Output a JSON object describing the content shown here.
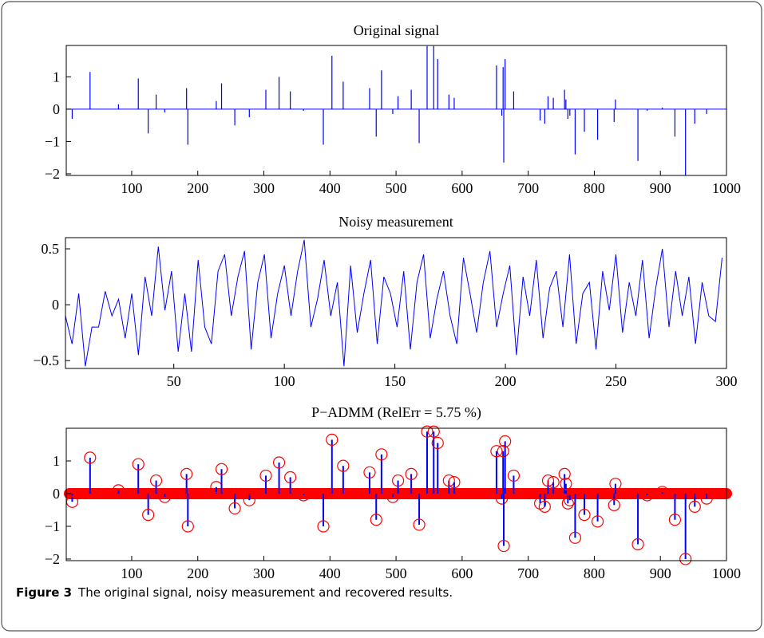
{
  "chart_data": [
    {
      "type": "spike",
      "title": "Original signal",
      "color": "#0000ff",
      "xlim": [
        1,
        1000
      ],
      "ylim": [
        -2.05,
        1.97
      ],
      "xticks": [
        100,
        200,
        300,
        400,
        500,
        600,
        700,
        800,
        900,
        1000
      ],
      "yticks": [
        -2,
        -1,
        0,
        1
      ],
      "x": [
        10,
        37,
        80,
        110,
        125,
        137,
        150,
        183,
        185,
        228,
        236,
        256,
        278,
        303,
        323,
        340,
        360,
        390,
        403,
        420,
        460,
        470,
        478,
        495,
        503,
        523,
        535,
        547,
        557,
        563,
        580,
        588,
        652,
        660,
        662,
        663,
        665,
        678,
        718,
        725,
        730,
        738,
        755,
        757,
        760,
        763,
        771,
        785,
        805,
        830,
        832,
        866,
        880,
        903,
        922,
        938,
        952,
        970
      ],
      "values": [
        -0.3,
        1.15,
        0.15,
        0.95,
        -0.75,
        0.45,
        -0.1,
        0.65,
        -1.1,
        0.25,
        0.8,
        -0.5,
        -0.25,
        0.6,
        1.0,
        0.55,
        -0.05,
        -1.1,
        1.65,
        0.85,
        0.65,
        -0.85,
        1.2,
        -0.15,
        0.4,
        0.6,
        -1.05,
        1.95,
        1.95,
        1.55,
        0.45,
        0.35,
        1.35,
        -0.2,
        1.3,
        -1.65,
        1.55,
        0.55,
        -0.35,
        -0.45,
        0.4,
        0.35,
        0.6,
        0.3,
        -0.3,
        -0.2,
        -1.4,
        -0.7,
        -0.95,
        -0.4,
        0.3,
        -1.6,
        -0.05,
        0.05,
        -0.85,
        -2.05,
        -0.45,
        -0.15
      ]
    },
    {
      "type": "line",
      "title": "Noisy measurement",
      "color": "#0000ff",
      "xlim": [
        1,
        300
      ],
      "ylim": [
        -0.57,
        0.6
      ],
      "xticks": [
        50,
        100,
        150,
        200,
        250,
        300
      ],
      "yticks": [
        -0.5,
        0,
        0.5
      ],
      "x": [
        1,
        4,
        7,
        10,
        13,
        16,
        19,
        22,
        25,
        28,
        31,
        34,
        37,
        40,
        43,
        46,
        49,
        52,
        55,
        58,
        61,
        64,
        67,
        70,
        73,
        76,
        79,
        82,
        85,
        88,
        91,
        94,
        97,
        100,
        103,
        106,
        109,
        112,
        115,
        118,
        121,
        124,
        127,
        130,
        133,
        136,
        139,
        142,
        145,
        148,
        151,
        154,
        157,
        160,
        163,
        166,
        169,
        172,
        175,
        178,
        181,
        184,
        187,
        190,
        193,
        196,
        199,
        202,
        205,
        208,
        211,
        214,
        217,
        220,
        223,
        226,
        229,
        232,
        235,
        238,
        241,
        244,
        247,
        250,
        253,
        256,
        259,
        262,
        265,
        268,
        271,
        274,
        277,
        280,
        283,
        286,
        289,
        292,
        295,
        298
      ],
      "values": [
        -0.1,
        -0.35,
        0.1,
        -0.55,
        -0.2,
        -0.2,
        0.12,
        -0.1,
        0.05,
        -0.3,
        0.1,
        -0.45,
        0.25,
        -0.1,
        0.52,
        -0.05,
        0.3,
        -0.42,
        0.1,
        -0.42,
        0.4,
        -0.2,
        -0.35,
        0.3,
        0.45,
        -0.1,
        0.25,
        0.48,
        -0.4,
        0.2,
        0.45,
        -0.3,
        0.1,
        0.35,
        -0.1,
        0.3,
        0.58,
        -0.2,
        0.05,
        0.4,
        -0.1,
        0.2,
        -0.55,
        0.35,
        -0.25,
        0.1,
        0.4,
        -0.35,
        0.25,
        0.1,
        -0.2,
        0.3,
        -0.4,
        0.2,
        0.45,
        -0.3,
        0.05,
        0.3,
        -0.1,
        -0.35,
        0.42,
        0.1,
        -0.25,
        0.2,
        0.48,
        -0.2,
        0.1,
        0.35,
        -0.45,
        0.25,
        -0.1,
        0.4,
        -0.3,
        0.15,
        0.3,
        -0.2,
        0.45,
        -0.35,
        0.1,
        0.2,
        -0.4,
        0.3,
        -0.05,
        0.45,
        -0.25,
        0.2,
        -0.1,
        0.4,
        -0.3,
        0.15,
        0.5,
        -0.2,
        0.3,
        -0.1,
        0.25,
        -0.35,
        0.2,
        -0.1,
        -0.15,
        0.42
      ]
    },
    {
      "type": "stem",
      "title": "P−ADMM (RelErr =  5.75 %)",
      "color": "#0000ff",
      "marker_color": "#ff0000",
      "xlim": [
        1,
        1000
      ],
      "ylim": [
        -2.05,
        2.0
      ],
      "xticks": [
        100,
        200,
        300,
        400,
        500,
        600,
        700,
        800,
        900,
        1000
      ],
      "yticks": [
        -2,
        -1,
        0,
        1
      ],
      "x": [
        10,
        37,
        80,
        110,
        125,
        137,
        150,
        183,
        185,
        228,
        236,
        256,
        278,
        303,
        323,
        340,
        360,
        390,
        403,
        420,
        460,
        470,
        478,
        495,
        503,
        523,
        535,
        547,
        557,
        563,
        580,
        588,
        652,
        660,
        662,
        663,
        665,
        678,
        718,
        725,
        730,
        738,
        755,
        757,
        760,
        763,
        771,
        785,
        805,
        830,
        832,
        866,
        880,
        903,
        922,
        938,
        952,
        970
      ],
      "values": [
        -0.25,
        1.1,
        0.1,
        0.9,
        -0.65,
        0.4,
        -0.1,
        0.6,
        -1.0,
        0.2,
        0.75,
        -0.45,
        -0.2,
        0.55,
        0.95,
        0.5,
        -0.05,
        -1.0,
        1.65,
        0.85,
        0.65,
        -0.8,
        1.2,
        -0.1,
        0.4,
        0.6,
        -0.95,
        1.9,
        1.9,
        1.55,
        0.4,
        0.35,
        1.3,
        -0.15,
        1.3,
        -1.6,
        1.6,
        0.55,
        -0.3,
        -0.4,
        0.4,
        0.35,
        0.6,
        0.3,
        -0.3,
        -0.2,
        -1.35,
        -0.65,
        -0.85,
        -0.35,
        0.3,
        -1.55,
        -0.05,
        0.05,
        -0.8,
        -2.0,
        -0.4,
        -0.15
      ]
    }
  ],
  "caption": {
    "label": "Figure 3",
    "text": "The original signal, noisy measurement and recovered results."
  }
}
